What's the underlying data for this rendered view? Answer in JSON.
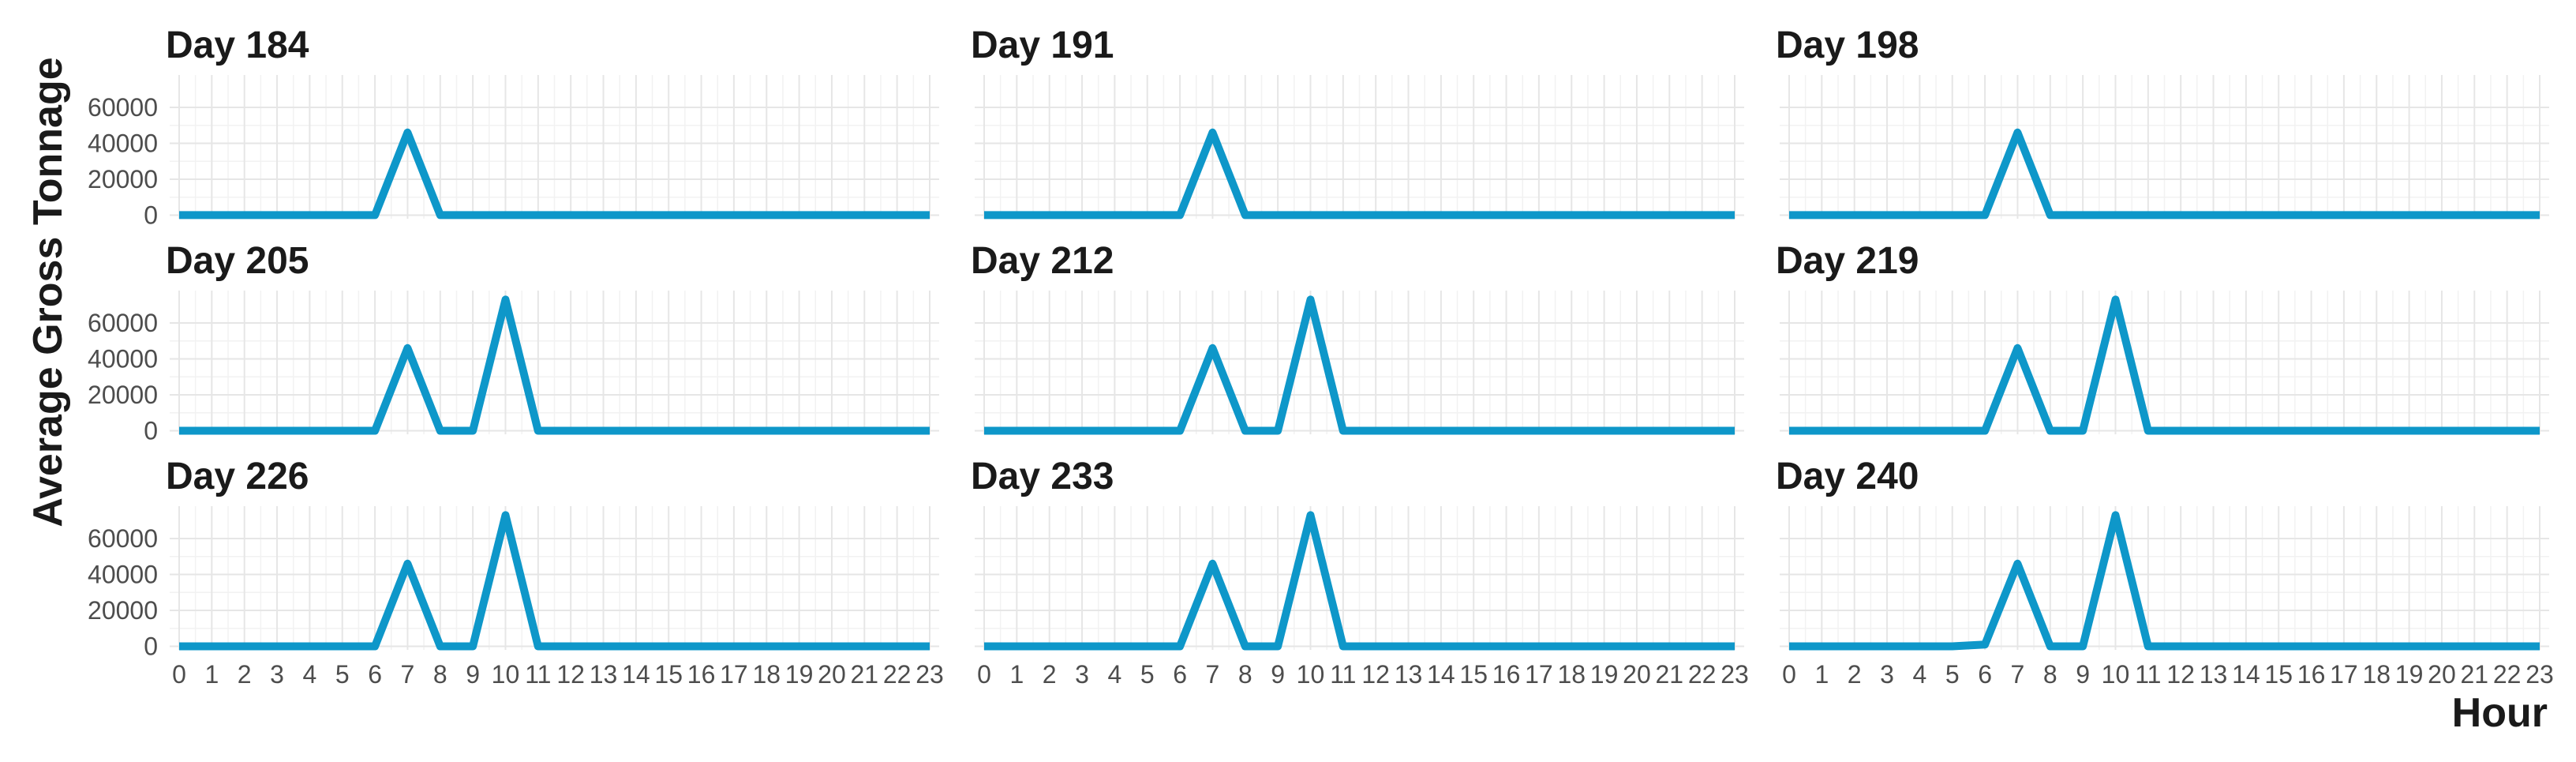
{
  "chart_data": {
    "type": "line",
    "xlabel": "Hour",
    "ylabel": "Average Gross Tonnage",
    "x": [
      0,
      1,
      2,
      3,
      4,
      5,
      6,
      7,
      8,
      9,
      10,
      11,
      12,
      13,
      14,
      15,
      16,
      17,
      18,
      19,
      20,
      21,
      22,
      23
    ],
    "xticks": [
      "0",
      "1",
      "2",
      "3",
      "4",
      "5",
      "6",
      "7",
      "8",
      "9",
      "10",
      "11",
      "12",
      "13",
      "14",
      "15",
      "16",
      "17",
      "18",
      "19",
      "20",
      "21",
      "22",
      "23"
    ],
    "yticks": [
      0,
      20000,
      40000,
      60000
    ],
    "ytick_labels": [
      "0",
      "20000",
      "40000",
      "60000"
    ],
    "ylim": [
      -2000,
      78000
    ],
    "xlim": [
      0,
      23
    ],
    "grid": true,
    "line_color": "#0E97C9",
    "panels": [
      {
        "title": "Day 184",
        "values": [
          0,
          0,
          0,
          0,
          0,
          0,
          0,
          46000,
          0,
          0,
          0,
          0,
          0,
          0,
          0,
          0,
          0,
          0,
          0,
          0,
          0,
          0,
          0,
          0
        ]
      },
      {
        "title": "Day 191",
        "values": [
          0,
          0,
          0,
          0,
          0,
          0,
          0,
          46000,
          0,
          0,
          0,
          0,
          0,
          0,
          0,
          0,
          0,
          0,
          0,
          0,
          0,
          0,
          0,
          0
        ]
      },
      {
        "title": "Day 198",
        "values": [
          0,
          0,
          0,
          0,
          0,
          0,
          0,
          46000,
          0,
          0,
          0,
          0,
          0,
          0,
          0,
          0,
          0,
          0,
          0,
          0,
          0,
          0,
          0,
          0
        ]
      },
      {
        "title": "Day 205",
        "values": [
          0,
          0,
          0,
          0,
          0,
          0,
          0,
          46000,
          0,
          0,
          73000,
          0,
          0,
          0,
          0,
          0,
          0,
          0,
          0,
          0,
          0,
          0,
          0,
          0
        ]
      },
      {
        "title": "Day 212",
        "values": [
          0,
          0,
          0,
          0,
          0,
          0,
          0,
          46000,
          0,
          0,
          73000,
          0,
          0,
          0,
          0,
          0,
          0,
          0,
          0,
          0,
          0,
          0,
          0,
          0
        ]
      },
      {
        "title": "Day 219",
        "values": [
          0,
          0,
          0,
          0,
          0,
          0,
          0,
          46000,
          0,
          0,
          73000,
          0,
          0,
          0,
          0,
          0,
          0,
          0,
          0,
          0,
          0,
          0,
          0,
          0
        ]
      },
      {
        "title": "Day 226",
        "values": [
          0,
          0,
          0,
          0,
          0,
          0,
          0,
          46000,
          0,
          0,
          73000,
          0,
          0,
          0,
          0,
          0,
          0,
          0,
          0,
          0,
          0,
          0,
          0,
          0
        ]
      },
      {
        "title": "Day 233",
        "values": [
          0,
          0,
          0,
          0,
          0,
          0,
          0,
          46000,
          0,
          0,
          73000,
          0,
          0,
          0,
          0,
          0,
          0,
          0,
          0,
          0,
          0,
          0,
          0,
          0
        ]
      },
      {
        "title": "Day 240",
        "values": [
          0,
          0,
          0,
          0,
          0,
          0,
          1000,
          46000,
          0,
          0,
          73000,
          0,
          0,
          0,
          0,
          0,
          0,
          0,
          0,
          0,
          0,
          0,
          0,
          0
        ]
      }
    ]
  }
}
